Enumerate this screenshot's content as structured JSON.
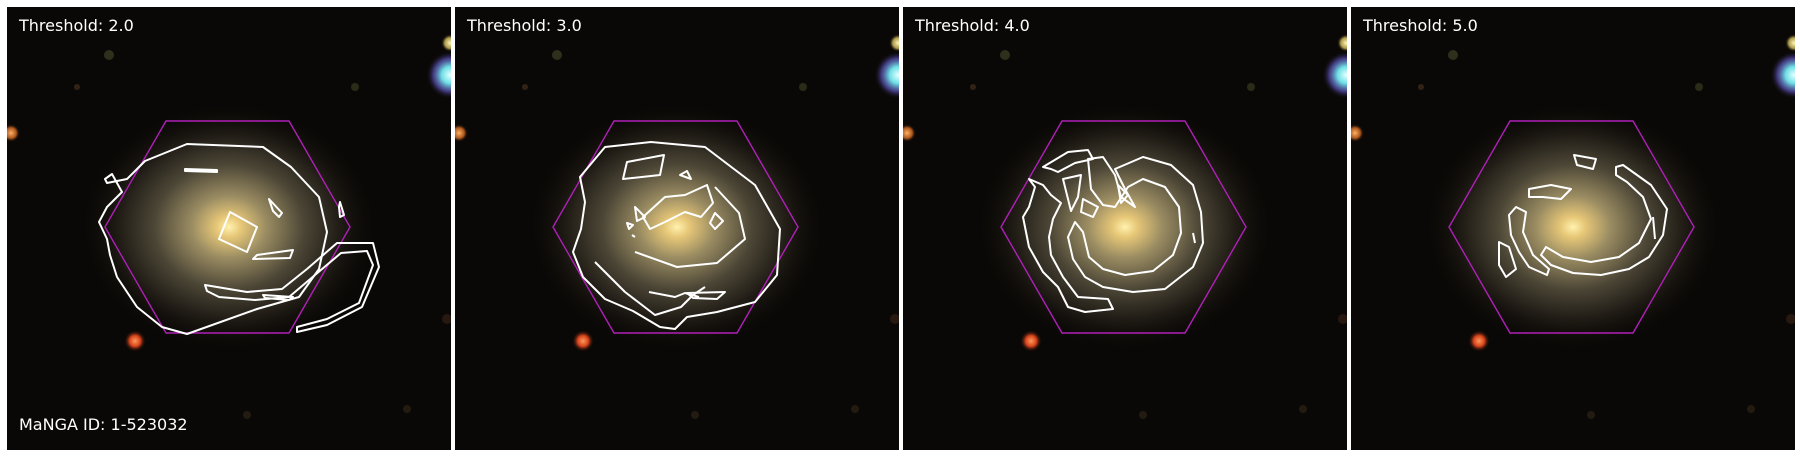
{
  "panels": [
    {
      "threshold_label": "Threshold: 2.0",
      "id_label": "MaNGA ID: 1-523032"
    },
    {
      "threshold_label": "Threshold: 3.0"
    },
    {
      "threshold_label": "Threshold: 4.0"
    },
    {
      "threshold_label": "Threshold: 5.0"
    }
  ],
  "colors": {
    "sky": "#0a0806",
    "hexagon": "#b01fb8",
    "contour": "#ffffff",
    "core": "#f4d27a"
  }
}
